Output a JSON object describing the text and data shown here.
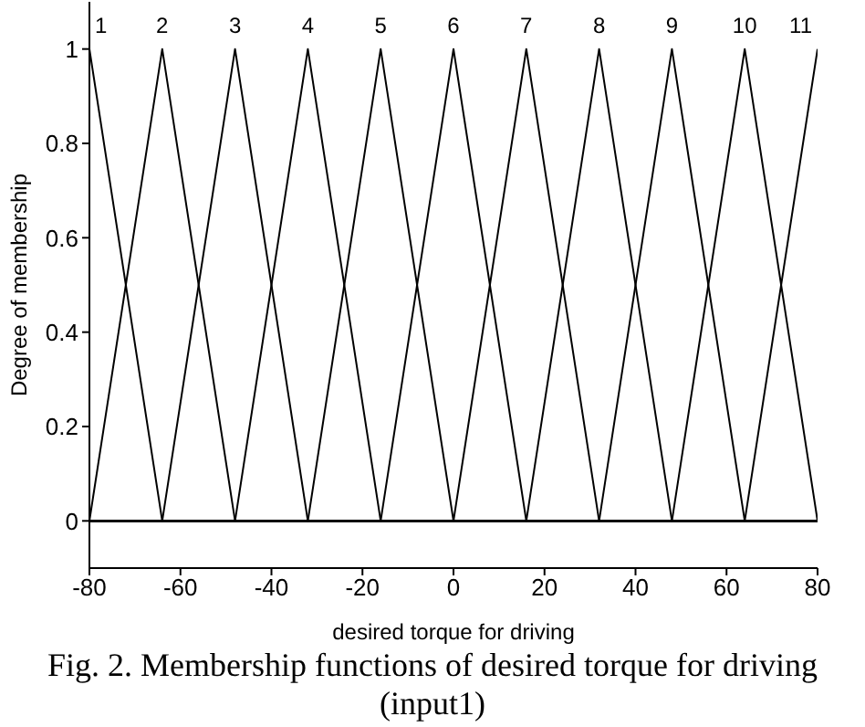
{
  "chart_data": {
    "type": "line",
    "xlabel": "desired torque for driving",
    "ylabel": "Degree of membership",
    "xlim": [
      -80,
      80
    ],
    "xticks": [
      -80,
      -60,
      -40,
      -20,
      0,
      20,
      40,
      60,
      80
    ],
    "ylim": [
      -0.1,
      1.1
    ],
    "yticks": [
      0,
      0.2,
      0.4,
      0.6,
      0.8,
      1
    ],
    "grid": false,
    "legend": false,
    "marker": "none",
    "line_style": "solid",
    "series": [
      {
        "name": "1",
        "color": "#000000",
        "x": [
          -80,
          -64,
          80
        ],
        "values": [
          1,
          0,
          0
        ]
      },
      {
        "name": "2",
        "color": "#000000",
        "x": [
          -80,
          -64,
          -48,
          80
        ],
        "values": [
          0,
          1,
          0,
          0
        ]
      },
      {
        "name": "3",
        "color": "#000000",
        "x": [
          -80,
          -64,
          -48,
          -32,
          80
        ],
        "values": [
          0,
          0,
          1,
          0,
          0
        ]
      },
      {
        "name": "4",
        "color": "#000000",
        "x": [
          -80,
          -48,
          -32,
          -16,
          80
        ],
        "values": [
          0,
          0,
          1,
          0,
          0
        ]
      },
      {
        "name": "5",
        "color": "#000000",
        "x": [
          -80,
          -32,
          -16,
          0,
          80
        ],
        "values": [
          0,
          0,
          1,
          0,
          0
        ]
      },
      {
        "name": "6",
        "color": "#000000",
        "x": [
          -80,
          -16,
          0,
          16,
          80
        ],
        "values": [
          0,
          0,
          1,
          0,
          0
        ]
      },
      {
        "name": "7",
        "color": "#000000",
        "x": [
          -80,
          0,
          16,
          32,
          80
        ],
        "values": [
          0,
          0,
          1,
          0,
          0
        ]
      },
      {
        "name": "8",
        "color": "#000000",
        "x": [
          -80,
          16,
          32,
          48,
          80
        ],
        "values": [
          0,
          0,
          1,
          0,
          0
        ]
      },
      {
        "name": "9",
        "color": "#000000",
        "x": [
          -80,
          32,
          48,
          64,
          80
        ],
        "values": [
          0,
          0,
          1,
          0,
          0
        ]
      },
      {
        "name": "10",
        "color": "#000000",
        "x": [
          -80,
          48,
          64,
          80
        ],
        "values": [
          0,
          0,
          1,
          0
        ]
      },
      {
        "name": "11",
        "color": "#000000",
        "x": [
          -80,
          64,
          80
        ],
        "values": [
          0,
          0,
          1
        ]
      }
    ],
    "annotations": [
      "Fig. 2. Membership functions of desired torque for driving (input1)"
    ]
  }
}
